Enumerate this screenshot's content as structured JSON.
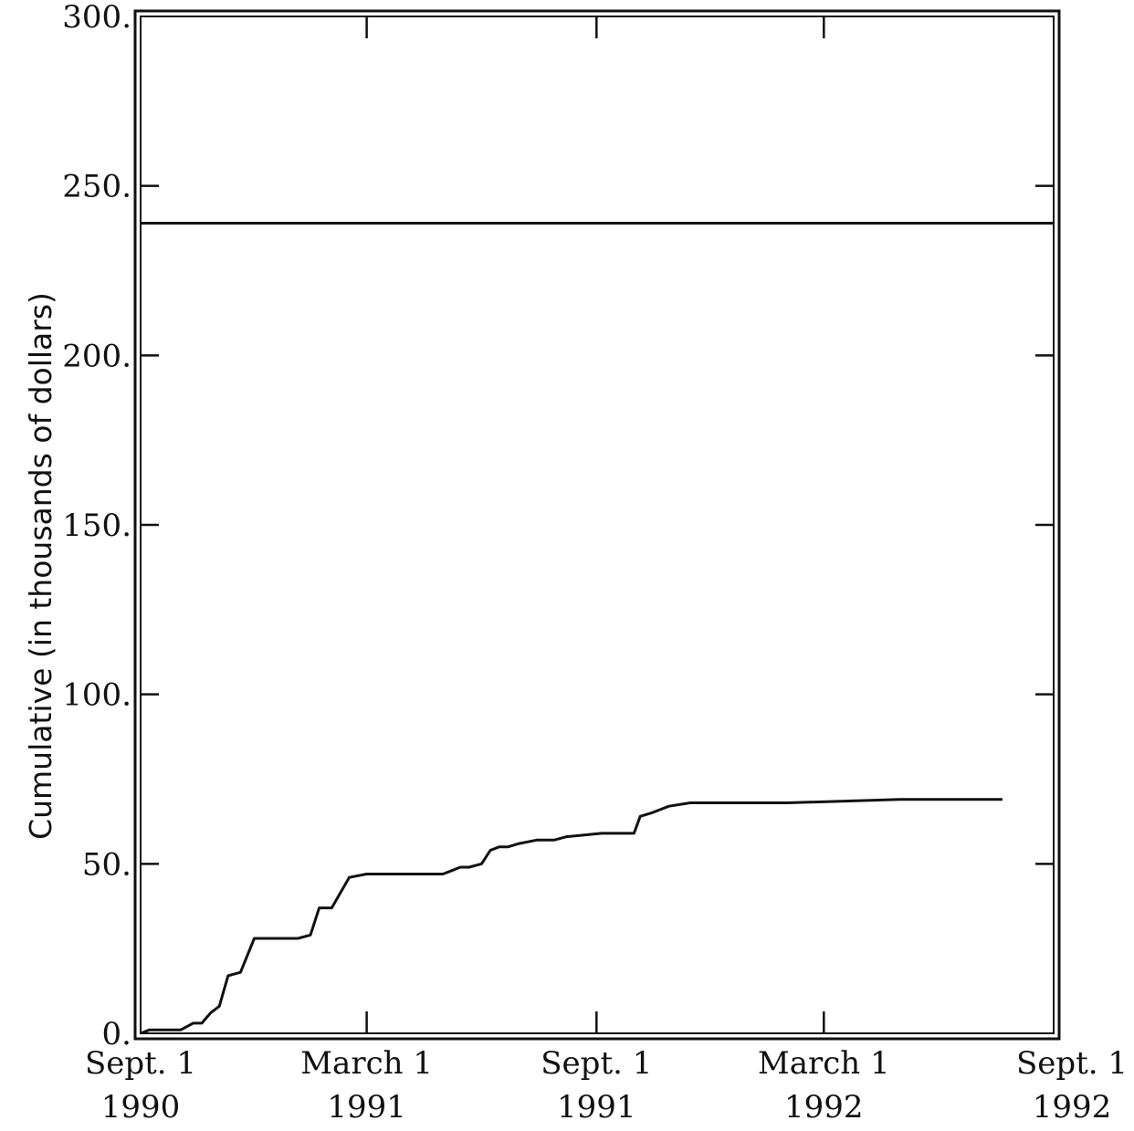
{
  "chart_data": {
    "type": "line",
    "title": "",
    "ylabel": "Cumulative (in thousands of dollars)",
    "xlabel": "",
    "ylim": [
      0,
      300
    ],
    "xlim": [
      "1990-09-01",
      "1992-09-01"
    ],
    "y_ticks": [
      {
        "value": 0,
        "label": "0."
      },
      {
        "value": 50,
        "label": "50."
      },
      {
        "value": 100,
        "label": "100."
      },
      {
        "value": 150,
        "label": "150."
      },
      {
        "value": 200,
        "label": "200."
      },
      {
        "value": 250,
        "label": "250."
      },
      {
        "value": 300,
        "label": "300."
      }
    ],
    "x_ticks": [
      {
        "date": "1990-09-01",
        "line1": "Sept. 1",
        "line2": "1990"
      },
      {
        "date": "1991-03-01",
        "line1": "March 1",
        "line2": "1991"
      },
      {
        "date": "1991-09-01",
        "line1": "Sept. 1",
        "line2": "1991"
      },
      {
        "date": "1992-03-01",
        "line1": "March 1",
        "line2": "1992"
      },
      {
        "date": "1992-09-01",
        "line1": "Sept. 1",
        "line2": "1992"
      }
    ],
    "reference_line": {
      "y": 239
    },
    "grid": false,
    "series": [
      {
        "points": [
          [
            "1990-09-01",
            0
          ],
          [
            "1990-09-08",
            1
          ],
          [
            "1990-10-03",
            1
          ],
          [
            "1990-10-13",
            3
          ],
          [
            "1990-10-20",
            3
          ],
          [
            "1990-10-27",
            6
          ],
          [
            "1990-11-03",
            8
          ],
          [
            "1990-11-10",
            17
          ],
          [
            "1990-11-20",
            18
          ],
          [
            "1990-12-01",
            28
          ],
          [
            "1991-01-05",
            28
          ],
          [
            "1991-01-15",
            29
          ],
          [
            "1991-01-22",
            37
          ],
          [
            "1991-02-01",
            37
          ],
          [
            "1991-02-15",
            46
          ],
          [
            "1991-03-01",
            47
          ],
          [
            "1991-05-01",
            47
          ],
          [
            "1991-05-08",
            48
          ],
          [
            "1991-05-15",
            49
          ],
          [
            "1991-05-22",
            49
          ],
          [
            "1991-06-01",
            50
          ],
          [
            "1991-06-08",
            54
          ],
          [
            "1991-06-15",
            55
          ],
          [
            "1991-06-22",
            55
          ],
          [
            "1991-07-01",
            56
          ],
          [
            "1991-07-15",
            57
          ],
          [
            "1991-07-29",
            57
          ],
          [
            "1991-08-08",
            58
          ],
          [
            "1991-09-05",
            59
          ],
          [
            "1991-10-01",
            59
          ],
          [
            "1991-10-06",
            64
          ],
          [
            "1991-10-15",
            65
          ],
          [
            "1991-10-22",
            66
          ],
          [
            "1991-10-29",
            67
          ],
          [
            "1991-11-15",
            68
          ],
          [
            "1992-02-01",
            68
          ],
          [
            "1992-05-01",
            69
          ],
          [
            "1992-07-22",
            69
          ]
        ]
      }
    ]
  }
}
